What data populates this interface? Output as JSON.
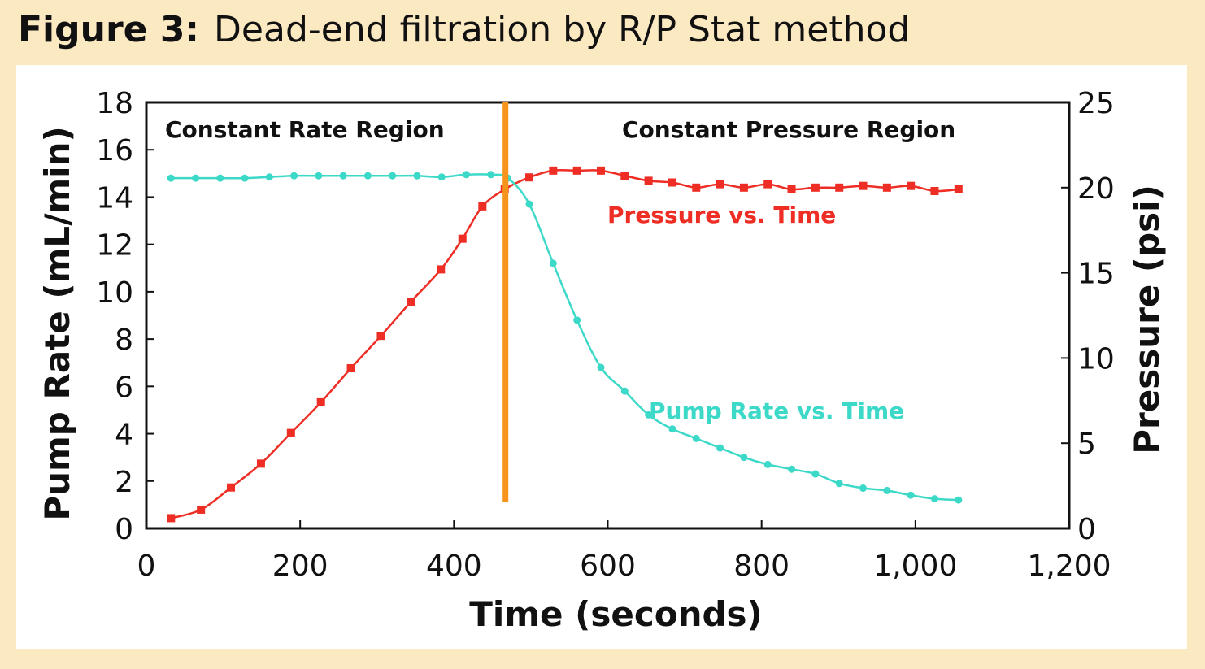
{
  "figure": {
    "label": "Figure 3:",
    "title": "Dead-end filtration by R/P Stat method"
  },
  "colors": {
    "background": "#fbe9c2",
    "pressure": "#ee2d24",
    "pump_rate": "#3dd9c8",
    "divider": "#f7941d"
  },
  "chart_data": {
    "type": "line",
    "xlabel": "Time (seconds)",
    "ylabel_left": "Pump Rate (mL/min)",
    "ylabel_right": "Pressure (psi)",
    "xlim": [
      0,
      1200
    ],
    "ylim_left": [
      0,
      18
    ],
    "ylim_right": [
      0,
      25
    ],
    "x_ticks": [
      0,
      200,
      400,
      600,
      800,
      1000,
      1200
    ],
    "x_tick_labels": [
      "0",
      "200",
      "400",
      "600",
      "800",
      "1,000",
      "1,200"
    ],
    "y_left_ticks": [
      0,
      2,
      4,
      6,
      8,
      10,
      12,
      14,
      16,
      18
    ],
    "y_left_tick_labels": [
      "0",
      "2",
      "4",
      "6",
      "8",
      "10",
      "12",
      "14",
      "16",
      "18"
    ],
    "y_right_ticks": [
      0,
      5,
      10,
      15,
      20,
      25
    ],
    "y_right_tick_labels": [
      "0",
      "5",
      "10",
      "15",
      "20",
      "25"
    ],
    "divider_x": 467,
    "regions": [
      {
        "label": "Constant Rate Region"
      },
      {
        "label": "Constant Pressure Region"
      }
    ],
    "series": [
      {
        "name": "Pressure vs. Time",
        "axis": "right",
        "marker": "square",
        "x": [
          32,
          71,
          110,
          149,
          188,
          227,
          266,
          305,
          344,
          383,
          411,
          437,
          466,
          498,
          529,
          560,
          591,
          622,
          653,
          684,
          715,
          746,
          777,
          808,
          839,
          870,
          901,
          932,
          963,
          994,
          1025,
          1056
        ],
        "y": [
          0.6,
          1.1,
          2.4,
          3.8,
          5.6,
          7.4,
          9.4,
          11.3,
          13.3,
          15.2,
          17.0,
          18.9,
          19.9,
          20.6,
          21.0,
          21.0,
          21.0,
          20.7,
          20.4,
          20.3,
          20.0,
          20.2,
          20.0,
          20.2,
          19.9,
          20.0,
          20.0,
          20.1,
          20.0,
          20.1,
          19.8,
          19.9
        ]
      },
      {
        "name": "Pump Rate vs. Time",
        "axis": "left",
        "marker": "circle",
        "x": [
          32,
          64,
          96,
          128,
          160,
          192,
          224,
          256,
          288,
          320,
          352,
          384,
          416,
          448,
          470,
          498,
          529,
          560,
          591,
          622,
          653,
          684,
          715,
          746,
          777,
          808,
          839,
          870,
          901,
          932,
          963,
          994,
          1025,
          1056
        ],
        "y": [
          14.8,
          14.8,
          14.8,
          14.8,
          14.85,
          14.9,
          14.9,
          14.9,
          14.9,
          14.9,
          14.9,
          14.85,
          14.95,
          14.95,
          14.8,
          13.7,
          11.2,
          8.8,
          6.8,
          5.8,
          4.8,
          4.2,
          3.8,
          3.4,
          3.0,
          2.7,
          2.5,
          2.3,
          1.9,
          1.7,
          1.6,
          1.4,
          1.25,
          1.2
        ]
      }
    ]
  }
}
